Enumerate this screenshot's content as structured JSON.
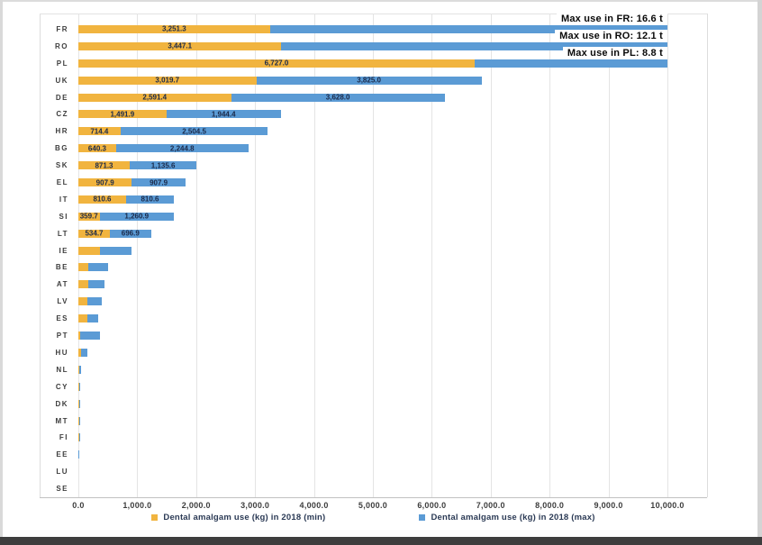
{
  "chart_data": {
    "type": "bar",
    "orientation": "horizontal",
    "stacked": true,
    "title": "",
    "xlabel": "",
    "ylabel": "",
    "xlim": [
      0,
      10000
    ],
    "x_tick_interval": 1000,
    "x_tick_labels": [
      "0.0",
      "1,000.0",
      "2,000.0",
      "3,000.0",
      "4,000.0",
      "5,000.0",
      "6,000.0",
      "7,000.0",
      "8,000.0",
      "9,000.0",
      "10,000.0"
    ],
    "grid": true,
    "legend_position": "bottom",
    "categories": [
      "FR",
      "RO",
      "PL",
      "UK",
      "DE",
      "CZ",
      "HR",
      "BG",
      "SK",
      "EL",
      "IT",
      "SI",
      "LT",
      "IE",
      "BE",
      "AT",
      "LV",
      "ES",
      "PT",
      "HU",
      "NL",
      "CY",
      "DK",
      "MT",
      "FI",
      "EE",
      "LU",
      "SE"
    ],
    "series": [
      {
        "name": "Dental amalgam use (kg) in 2018 (min)",
        "color": "#F1B43F",
        "values": [
          3251.3,
          3447.1,
          6727.0,
          3019.7,
          2591.4,
          1491.9,
          714.4,
          640.3,
          871.3,
          907.9,
          810.6,
          359.7,
          534.7,
          370,
          175,
          165,
          145,
          145,
          30,
          45,
          20,
          15,
          15,
          15,
          10,
          5,
          3,
          0
        ],
        "labels": [
          "3,251.3",
          "3,447.1",
          "6,727.0",
          "3,019.7",
          "2,591.4",
          "1,491.9",
          "714.4",
          "640.3",
          "871.3",
          "907.9",
          "810.6",
          "359.7",
          "534.7",
          null,
          null,
          null,
          null,
          null,
          null,
          null,
          null,
          null,
          null,
          null,
          null,
          null,
          null,
          null
        ]
      },
      {
        "name": "Dental amalgam use (kg) in 2018 (max)",
        "color": "#5B9BD5",
        "values": [
          16600,
          12100,
          8800,
          3825.0,
          3628.0,
          1944.4,
          2504.5,
          2244.8,
          1135.6,
          907.9,
          810.6,
          1260.9,
          696.9,
          540,
          330,
          280,
          255,
          195,
          330,
          105,
          25,
          20,
          20,
          18,
          12,
          8,
          4,
          0
        ],
        "labels": [
          null,
          null,
          null,
          "3,825.0",
          "3,628.0",
          "1,944.4",
          "2,504.5",
          "2,244.8",
          "1,135.6",
          "907.9",
          "810.6",
          "1,260.9",
          "696.9",
          null,
          null,
          null,
          null,
          null,
          null,
          null,
          null,
          null,
          null,
          null,
          null,
          null,
          null,
          null
        ]
      }
    ],
    "annotations": [
      "Max use in FR: 16.6 t",
      "Max use in RO: 12.1 t",
      "Max use in PL: 8.8 t"
    ],
    "clipped_at_xmax": [
      "FR",
      "RO",
      "PL"
    ],
    "estimated_categories": [
      "IE",
      "BE",
      "AT",
      "LV",
      "ES",
      "PT",
      "HU",
      "NL",
      "CY",
      "DK",
      "MT",
      "FI",
      "EE",
      "LU",
      "SE"
    ]
  }
}
